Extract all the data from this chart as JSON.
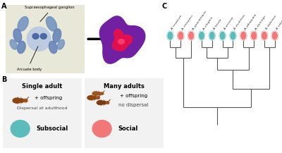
{
  "panel_labels": [
    "A",
    "B",
    "C"
  ],
  "species": [
    "A. texanum",
    "A. ontoyacu",
    "A. guacamayos",
    "A. elegans",
    "A. bezza",
    "A. arizona",
    "A. studiosus",
    "A. jabaquara",
    "A. domingo",
    "A. dubiosus",
    "A. caenius"
  ],
  "species_colors": [
    "#5cbcbc",
    "#f07878",
    "#f07878",
    "#5cbcbc",
    "#5cbcbc",
    "#5cbcbc",
    "#5cbcbc",
    "#f07878",
    "#f07878",
    "#f07878",
    "#f07878"
  ],
  "subsocial_color": "#5cbcbc",
  "social_color": "#f07878",
  "tree_color": "#555555",
  "bg_color": "#ffffff",
  "box_bg": "#f2f2f2"
}
